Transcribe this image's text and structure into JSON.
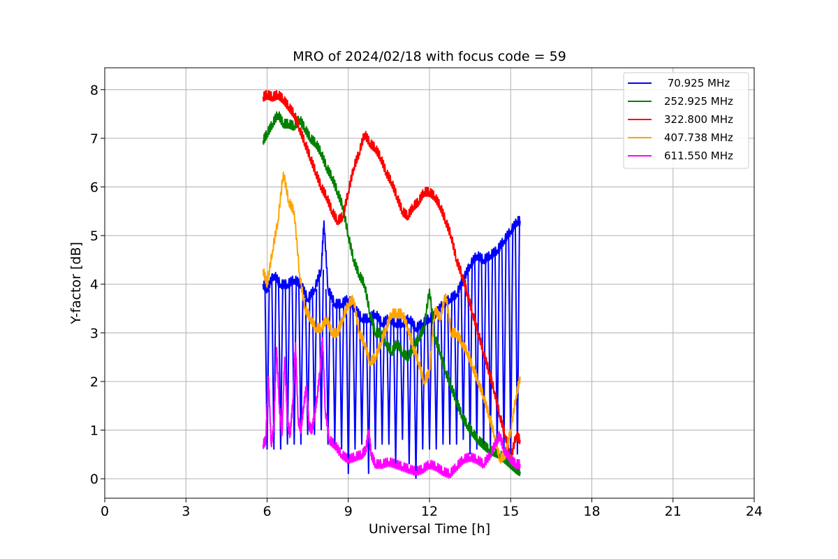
{
  "chart_data": {
    "type": "line",
    "title": "MRO of 2024/02/18 with focus code = 59",
    "xlabel": "Universal Time [h]",
    "ylabel": "Y-factor [dB]",
    "xlim": [
      0,
      24
    ],
    "ylim": [
      -0.4,
      8.45
    ],
    "xticks": [
      0,
      3,
      6,
      9,
      12,
      15,
      18,
      21,
      24
    ],
    "yticks": [
      0,
      1,
      2,
      3,
      4,
      5,
      6,
      7,
      8
    ],
    "grid": true,
    "legend_position": "top-right",
    "series": [
      {
        "name": " 70.925 MHz",
        "color": "#0000ff",
        "x": [
          5.85,
          6.0,
          6.25,
          6.5,
          6.75,
          7.0,
          7.25,
          7.5,
          7.75,
          8.0,
          8.1,
          8.25,
          8.5,
          8.75,
          9.0,
          9.25,
          9.5,
          9.75,
          10.0,
          10.25,
          10.5,
          10.75,
          11.0,
          11.25,
          11.5,
          11.75,
          12.0,
          12.25,
          12.5,
          12.75,
          13.0,
          13.25,
          13.5,
          13.75,
          14.0,
          14.25,
          14.5,
          14.75,
          15.0,
          15.25,
          15.35
        ],
        "y": [
          4.0,
          3.9,
          4.2,
          4.0,
          4.0,
          4.1,
          4.0,
          3.7,
          3.9,
          4.3,
          5.3,
          3.9,
          3.6,
          3.6,
          3.7,
          3.5,
          3.3,
          3.3,
          3.4,
          3.2,
          3.3,
          3.2,
          3.2,
          3.3,
          3.1,
          3.2,
          3.3,
          3.4,
          3.6,
          3.7,
          3.8,
          4.1,
          4.4,
          4.6,
          4.5,
          4.6,
          4.7,
          4.9,
          5.1,
          5.3,
          5.3
        ],
        "dips": [
          [
            6.0,
            0.6
          ],
          [
            6.25,
            0.6
          ],
          [
            6.5,
            0.6
          ],
          [
            6.75,
            0.7
          ],
          [
            7.0,
            0.7
          ],
          [
            7.25,
            0.7
          ],
          [
            7.5,
            0.9
          ],
          [
            7.75,
            0.9
          ],
          [
            8.0,
            1.0
          ],
          [
            8.25,
            0.7
          ],
          [
            8.5,
            0.7
          ],
          [
            8.75,
            0.6
          ],
          [
            9.0,
            0.1
          ],
          [
            9.25,
            0.6
          ],
          [
            9.5,
            0.7
          ],
          [
            9.75,
            0.1
          ],
          [
            10.0,
            0.6
          ],
          [
            10.25,
            0.7
          ],
          [
            10.5,
            0.7
          ],
          [
            10.75,
            0.3
          ],
          [
            11.0,
            0.8
          ],
          [
            11.25,
            0.3
          ],
          [
            11.5,
            0.0
          ],
          [
            11.75,
            0.6
          ],
          [
            12.0,
            0.6
          ],
          [
            12.25,
            0.6
          ],
          [
            12.5,
            0.7
          ],
          [
            12.75,
            0.7
          ],
          [
            13.0,
            0.7
          ],
          [
            13.25,
            0.8
          ],
          [
            13.5,
            0.5
          ],
          [
            13.75,
            0.6
          ],
          [
            14.0,
            0.6
          ],
          [
            14.25,
            0.6
          ],
          [
            14.5,
            0.5
          ],
          [
            14.75,
            0.5
          ],
          [
            15.0,
            0.5
          ],
          [
            15.25,
            0.5
          ]
        ]
      },
      {
        "name": "252.925 MHz",
        "color": "#008000",
        "x": [
          5.85,
          6.0,
          6.2,
          6.4,
          6.6,
          6.8,
          7.0,
          7.2,
          7.4,
          7.6,
          7.8,
          8.0,
          8.2,
          8.4,
          8.6,
          8.8,
          9.0,
          9.2,
          9.4,
          9.6,
          9.8,
          10.0,
          10.2,
          10.4,
          10.6,
          10.8,
          11.0,
          11.2,
          11.4,
          11.6,
          11.8,
          12.0,
          12.2,
          12.4,
          12.6,
          12.8,
          13.0,
          13.2,
          13.4,
          13.6,
          13.8,
          14.0,
          14.2,
          14.4,
          14.6,
          14.8,
          15.0,
          15.2,
          15.35
        ],
        "y": [
          6.95,
          7.1,
          7.3,
          7.5,
          7.3,
          7.3,
          7.25,
          7.4,
          7.2,
          7.0,
          6.9,
          6.7,
          6.4,
          6.2,
          5.9,
          5.6,
          5.0,
          4.5,
          4.2,
          4.0,
          3.4,
          3.0,
          3.0,
          2.8,
          2.6,
          2.8,
          2.6,
          2.5,
          2.7,
          2.9,
          3.1,
          3.9,
          2.9,
          2.6,
          2.2,
          1.9,
          1.6,
          1.3,
          1.1,
          0.95,
          0.8,
          0.7,
          0.6,
          0.55,
          0.5,
          0.4,
          0.3,
          0.2,
          0.15
        ]
      },
      {
        "name": "322.800 MHz",
        "color": "#ff0000",
        "x": [
          5.85,
          6.0,
          6.2,
          6.4,
          6.6,
          6.8,
          7.0,
          7.2,
          7.4,
          7.6,
          7.8,
          8.0,
          8.2,
          8.4,
          8.6,
          8.8,
          9.0,
          9.2,
          9.4,
          9.6,
          9.8,
          10.0,
          10.2,
          10.4,
          10.6,
          10.8,
          11.0,
          11.2,
          11.4,
          11.6,
          11.8,
          12.0,
          12.2,
          12.4,
          12.6,
          12.8,
          13.0,
          13.2,
          13.4,
          13.6,
          13.8,
          14.0,
          14.2,
          14.4,
          14.6,
          14.8,
          15.0,
          15.2,
          15.35
        ],
        "y": [
          7.85,
          7.9,
          7.85,
          7.9,
          7.8,
          7.65,
          7.5,
          7.2,
          6.9,
          6.6,
          6.3,
          6.0,
          5.8,
          5.5,
          5.3,
          5.4,
          5.9,
          6.4,
          6.7,
          7.1,
          6.9,
          6.8,
          6.6,
          6.3,
          6.1,
          5.8,
          5.5,
          5.4,
          5.6,
          5.7,
          5.9,
          5.9,
          5.8,
          5.6,
          5.3,
          5.0,
          4.5,
          4.2,
          3.8,
          3.4,
          3.0,
          2.6,
          2.2,
          1.8,
          1.3,
          0.9,
          0.4,
          0.9,
          0.8
        ]
      },
      {
        "name": "407.738 MHz",
        "color": "#ffa500",
        "x": [
          5.85,
          6.0,
          6.2,
          6.4,
          6.6,
          6.8,
          7.0,
          7.2,
          7.4,
          7.6,
          7.8,
          8.0,
          8.2,
          8.4,
          8.6,
          8.8,
          9.0,
          9.2,
          9.4,
          9.6,
          9.8,
          10.0,
          10.2,
          10.4,
          10.6,
          10.8,
          11.0,
          11.2,
          11.4,
          11.6,
          11.8,
          12.0,
          12.2,
          12.4,
          12.6,
          12.8,
          13.0,
          13.2,
          13.4,
          13.6,
          13.8,
          14.0,
          14.2,
          14.4,
          14.6,
          14.8,
          15.0,
          15.2,
          15.35
        ],
        "y": [
          4.3,
          4.0,
          4.7,
          5.3,
          6.3,
          5.7,
          5.5,
          4.2,
          3.5,
          3.3,
          3.1,
          3.1,
          3.3,
          3.0,
          3.0,
          3.3,
          3.6,
          3.7,
          3.0,
          2.8,
          2.4,
          2.5,
          2.8,
          3.1,
          3.4,
          3.4,
          3.4,
          3.1,
          2.7,
          2.4,
          2.0,
          2.2,
          3.5,
          3.3,
          3.8,
          3.0,
          3.0,
          2.8,
          2.6,
          2.3,
          2.0,
          1.7,
          1.3,
          0.9,
          0.4,
          0.5,
          1.0,
          1.7,
          2.1
        ]
      },
      {
        "name": "611.550 MHz",
        "color": "#ff00ff",
        "x": [
          5.85,
          5.95,
          6.05,
          6.15,
          6.25,
          6.35,
          6.45,
          6.55,
          6.65,
          6.75,
          6.85,
          6.95,
          7.05,
          7.15,
          7.25,
          7.35,
          7.45,
          7.55,
          7.65,
          7.75,
          7.85,
          7.95,
          8.05,
          8.15,
          8.3,
          8.5,
          8.75,
          9.0,
          9.25,
          9.5,
          9.65,
          9.75,
          9.85,
          10.0,
          10.25,
          10.5,
          10.75,
          11.0,
          11.25,
          11.5,
          11.75,
          12.0,
          12.25,
          12.5,
          12.75,
          13.0,
          13.25,
          13.5,
          13.75,
          14.0,
          14.25,
          14.5,
          14.6,
          14.75,
          15.0,
          15.2,
          15.35
        ],
        "y": [
          0.7,
          0.8,
          2.1,
          0.7,
          1.1,
          2.7,
          1.5,
          0.9,
          2.5,
          1.2,
          0.9,
          1.6,
          2.8,
          1.2,
          1.0,
          1.5,
          1.9,
          1.1,
          1.0,
          1.3,
          1.7,
          2.2,
          2.9,
          1.4,
          0.8,
          0.7,
          0.5,
          0.4,
          0.45,
          0.5,
          0.6,
          1.0,
          0.5,
          0.3,
          0.3,
          0.35,
          0.3,
          0.25,
          0.2,
          0.15,
          0.2,
          0.3,
          0.25,
          0.15,
          0.1,
          0.25,
          0.4,
          0.45,
          0.4,
          0.3,
          0.5,
          0.8,
          0.9,
          0.6,
          0.4,
          0.3,
          0.3
        ]
      }
    ]
  }
}
